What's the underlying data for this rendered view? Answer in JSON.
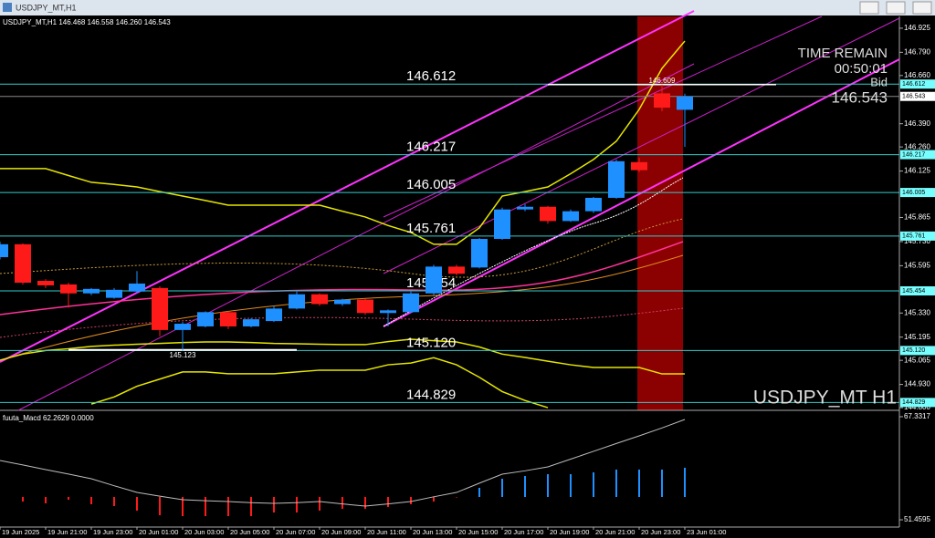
{
  "window_title": "USDJPY_MT,H1",
  "chart_data": [
    {
      "type": "candlestick",
      "title": "USDJPY_MT,H1 146.468 146.558 146.260 146.543",
      "symbol_label": "USDJPY_MT H1",
      "timer_title": "TIME REMAIN",
      "timer": "00:50:01",
      "bid_label": "Bid",
      "current_price": 146.543,
      "high_label": 146.609,
      "low_label": 145.123,
      "categories": [
        "19 Jun 2025",
        null,
        "19 Jun 21:00",
        null,
        "19 Jun 23:00",
        null,
        "20 Jun 01:00",
        null,
        "20 Jun 03:00",
        null,
        "20 Jun 05:00",
        null,
        "20 Jun 07:00",
        null,
        "20 Jun 09:00",
        null,
        "20 Jun 11:00",
        null,
        "20 Jun 13:00",
        null,
        "20 Jun 15:00",
        null,
        "20 Jun 17:00",
        null,
        "20 Jun 19:00",
        null,
        "20 Jun 21:00",
        null,
        "20 Jun 23:00",
        null,
        "23 Jun 01:00"
      ],
      "open": [
        145.643,
        145.715,
        145.51,
        145.49,
        145.44,
        145.415,
        145.45,
        145.47,
        145.235,
        145.255,
        145.335,
        145.255,
        145.285,
        145.355,
        145.435,
        145.38,
        145.405,
        145.33,
        145.335,
        145.44,
        145.59,
        145.585,
        145.745,
        145.91,
        145.925,
        145.845,
        145.9,
        145.975,
        146.175,
        146.56,
        146.468
      ],
      "high": [
        145.73,
        145.72,
        145.52,
        145.5,
        145.47,
        145.47,
        145.565,
        145.48,
        145.28,
        145.34,
        145.34,
        145.3,
        145.37,
        145.45,
        145.44,
        145.41,
        145.41,
        145.35,
        145.45,
        145.6,
        145.6,
        145.75,
        145.92,
        145.94,
        145.93,
        145.91,
        145.98,
        146.19,
        146.2,
        146.609,
        146.558
      ],
      "low": [
        145.63,
        145.49,
        145.47,
        145.36,
        145.43,
        145.41,
        145.44,
        145.2,
        145.12,
        145.25,
        145.24,
        145.25,
        145.28,
        145.35,
        145.37,
        145.37,
        145.32,
        145.255,
        145.33,
        145.43,
        145.54,
        145.58,
        145.74,
        145.9,
        145.83,
        145.84,
        145.89,
        145.97,
        146.12,
        146.46,
        146.26
      ],
      "close": [
        145.715,
        145.5,
        145.485,
        145.44,
        145.465,
        145.46,
        145.495,
        145.235,
        145.27,
        145.335,
        145.255,
        145.295,
        145.355,
        145.435,
        145.38,
        145.405,
        145.33,
        145.345,
        145.44,
        145.59,
        145.55,
        145.745,
        145.91,
        145.925,
        145.845,
        145.9,
        145.975,
        146.18,
        146.13,
        146.48,
        146.543
      ],
      "up_color": "#1e90ff",
      "down_color": "#ff1a1a",
      "series": [
        {
          "color": "#e6e600",
          "values": [
            146.139,
            146.139,
            146.139,
            146.1,
            146.062,
            146.05,
            146.036,
            146.01,
            145.985,
            145.96,
            145.934,
            145.934,
            145.934,
            145.934,
            145.934,
            145.9,
            145.868,
            145.82,
            145.781,
            145.715,
            145.715,
            145.807,
            145.985,
            146.01,
            146.036,
            146.11,
            146.19,
            146.292,
            146.47,
            146.7,
            146.853
          ]
        },
        {
          "color": "#e6e600",
          "values": [
            145.066,
            145.1,
            145.12,
            145.13,
            145.143,
            145.15,
            145.155,
            145.16,
            145.165,
            145.168,
            145.168,
            145.165,
            145.16,
            145.158,
            145.155,
            145.153,
            145.153,
            145.17,
            145.183,
            145.175,
            145.168,
            145.14,
            145.1,
            145.081,
            145.06,
            145.04,
            145.025,
            145.025,
            145.025,
            144.989,
            144.989
          ]
        },
        {
          "color": "#e6e600",
          "values": [
            null,
            null,
            null,
            null,
            144.82,
            144.86,
            144.92,
            144.96,
            145.0,
            145.0,
            144.99,
            144.99,
            144.99,
            145.0,
            145.01,
            145.01,
            145.01,
            145.04,
            145.05,
            145.08,
            145.04,
            144.97,
            144.89,
            144.84,
            144.8,
            null,
            null,
            null,
            null,
            null,
            null
          ]
        }
      ],
      "levels": [
        146.612,
        146.217,
        146.005,
        145.761,
        145.454,
        {
          "value": 145.12,
          "label": "145.120"
        },
        144.829
      ],
      "ylim": [
        144.785,
        146.991
      ],
      "yticks": [
        146.925,
        {
          "value": 146.79,
          "label": "146.790"
        },
        {
          "value": 146.66,
          "label": "146.660"
        },
        {
          "value": 146.39,
          "label": "146.390"
        },
        {
          "value": 146.26,
          "label": "146.260"
        },
        146.125,
        145.865,
        {
          "value": 145.73,
          "label": "145.730"
        },
        145.595,
        {
          "value": 145.33,
          "label": "145.330"
        },
        145.195,
        145.065,
        {
          "value": 144.93,
          "label": "144.930"
        },
        {
          "value": 144.8,
          "label": "144.800"
        }
      ]
    },
    {
      "type": "histogram",
      "title": "fuuta_Macd 62.2629 0.0000",
      "values": [
        null,
        54.27,
        53.99,
        54.55,
        53.85,
        53.57,
        52.87,
        52.16,
        52.02,
        52.02,
        52.02,
        52.02,
        52.58,
        52.58,
        52.87,
        53.15,
        53.15,
        53.43,
        53.85,
        54.27,
        54.9,
        56.38,
        57.78,
        58.2,
        58.48,
        58.48,
        58.76,
        59.19,
        59.19,
        59.19,
        59.47
      ],
      "colors": [
        "#ff1a1a",
        "#ff1a1a",
        "#ff1a1a",
        "#ff1a1a",
        "#ff1a1a",
        "#ff1a1a",
        "#ff1a1a",
        "#ff1a1a",
        "#ff1a1a",
        "#ff1a1a",
        "#ff1a1a",
        "#ff1a1a",
        "#ff1a1a",
        "#ff1a1a",
        "#ff1a1a",
        "#ff1a1a",
        "#ff1a1a",
        "#ff1a1a",
        "#ff1a1a",
        "#ff1a1a",
        "#ff1a1a",
        "#1e90ff",
        "#1e90ff",
        "#1e90ff",
        "#1e90ff",
        "#1e90ff",
        "#1e90ff",
        "#1e90ff",
        "#1e90ff",
        "#1e90ff",
        "#1e90ff"
      ],
      "signal": {
        "color": "#bdbdbd",
        "values": [
          60.59,
          59.9,
          59.19,
          58.5,
          57.78,
          56.7,
          55.67,
          55.1,
          54.55,
          54.4,
          54.27,
          54.1,
          53.99,
          54.1,
          54.27,
          53.9,
          53.57,
          53.9,
          54.27,
          55.0,
          55.67,
          57.1,
          58.48,
          59.0,
          59.61,
          60.8,
          62.0,
          63.2,
          64.38,
          65.6,
          66.91
        ]
      },
      "ylim": [
        50.34,
        68.03
      ],
      "yticks": [
        67.3317,
        51.4595
      ]
    }
  ]
}
